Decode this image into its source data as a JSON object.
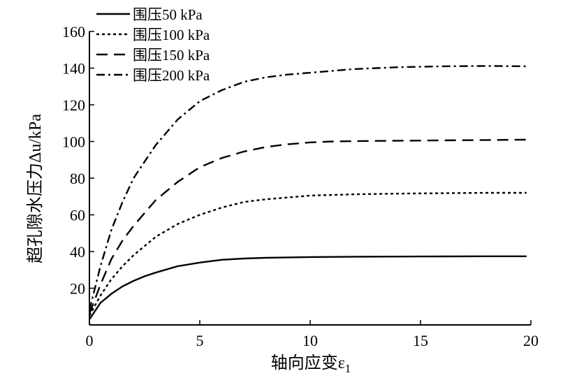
{
  "chart_data": {
    "type": "line",
    "xlabel": "轴向应变ε1",
    "ylabel": "超孔隙水压力Δu/kPa",
    "xlim": [
      0,
      20
    ],
    "ylim": [
      0,
      160
    ],
    "x_ticks": [
      "0",
      "5",
      "10",
      "15",
      "20"
    ],
    "y_ticks": [
      "20",
      "40",
      "60",
      "80",
      "100",
      "120",
      "140",
      "160"
    ],
    "legend_position": "top-left",
    "grid": false,
    "series": [
      {
        "name": "围压50 kPa",
        "dash": "solid",
        "x": [
          0,
          0.5,
          1,
          1.5,
          2,
          2.5,
          3,
          4,
          5,
          6,
          7,
          8,
          10,
          12,
          15,
          18,
          19.8
        ],
        "y": [
          3,
          12,
          17,
          21,
          24,
          26.5,
          28.5,
          32,
          34,
          35.5,
          36.2,
          36.6,
          37,
          37.2,
          37.3,
          37.4,
          37.4
        ]
      },
      {
        "name": "围压100 kPa",
        "dash": "dotted",
        "x": [
          0,
          0.5,
          1,
          1.5,
          2,
          3,
          4,
          5,
          6,
          7,
          8,
          9,
          10,
          12,
          14,
          16,
          18,
          19.8
        ],
        "y": [
          5,
          16,
          25,
          32,
          38,
          48,
          55,
          60,
          64,
          67,
          68.5,
          69.5,
          70.5,
          71.2,
          71.6,
          71.8,
          72,
          72
        ]
      },
      {
        "name": "围压150 kPa",
        "dash": "dashed",
        "x": [
          0,
          0.5,
          1,
          1.5,
          2,
          3,
          4,
          5,
          6,
          7,
          8,
          9,
          10,
          11,
          12,
          14,
          16,
          18,
          19.8
        ],
        "y": [
          6,
          22,
          36,
          46,
          54,
          68,
          78,
          86,
          91,
          94.5,
          97,
          98.5,
          99.5,
          100,
          100.2,
          100.4,
          100.6,
          100.8,
          101
        ]
      },
      {
        "name": "围压200 kPa",
        "dash": "dashdot",
        "x": [
          0,
          0.5,
          1,
          1.5,
          2,
          3,
          4,
          5,
          6,
          7,
          8,
          9,
          10,
          12,
          14,
          16,
          18,
          19.8
        ],
        "y": [
          8,
          32,
          52,
          67,
          80,
          98,
          112,
          122,
          128,
          132.5,
          135,
          136.5,
          137.5,
          139.5,
          140.5,
          141,
          141.2,
          141
        ]
      }
    ]
  }
}
